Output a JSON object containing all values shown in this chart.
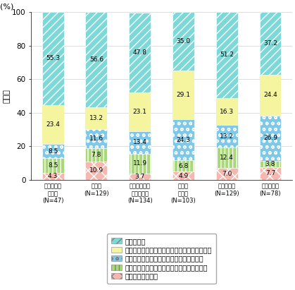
{
  "categories": [
    "農林水産業\n・鉱業\n(N=47)",
    "製造業\n(N=129)",
    "エネルギー・\nインフラ業\n(N=134)",
    "商業・\n流通業\n(N=103)",
    "情報通信業\n(N=129)",
    "サービス業\n(N=78)"
  ],
  "series": [
    {
      "label": "既に実施している",
      "values": [
        4.3,
        10.9,
        3.7,
        4.9,
        7.0,
        7.7
      ],
      "color": "#f5b8b0",
      "hatch": "xx"
    },
    {
      "label": "実施していないが、今後実施する予定である",
      "values": [
        8.5,
        7.8,
        11.9,
        6.8,
        12.4,
        3.8
      ],
      "color": "#a8d878",
      "hatch": "|||"
    },
    {
      "label": "実施予定はないが、今後実施を検討したい",
      "values": [
        8.5,
        11.6,
        13.4,
        24.3,
        13.2,
        26.9
      ],
      "color": "#7ec8e8",
      "hatch": "oo"
    },
    {
      "label": "特に関心はないし、今後の導入も考えていない",
      "values": [
        23.4,
        13.2,
        23.1,
        29.1,
        16.3,
        24.4
      ],
      "color": "#f5f5a0",
      "hatch": ""
    },
    {
      "label": "分からない",
      "values": [
        55.3,
        56.6,
        47.8,
        35.0,
        51.2,
        37.2
      ],
      "color": "#7dd8d8",
      "hatch": "///"
    }
  ],
  "ylim": [
    0,
    100
  ],
  "yticks": [
    0,
    20,
    40,
    60,
    80,
    100
  ],
  "ylabel_text": "割略回",
  "percent_label": "(%)",
  "bar_width": 0.5,
  "figure_bg": "#ffffff",
  "axes_bg": "#ffffff",
  "grid_color": "#d0d0d0",
  "font_size_values": 6.5,
  "font_size_labels": 6.0,
  "font_size_legend": 7.0,
  "font_size_ylabel": 8,
  "font_size_percent": 8,
  "font_size_yticks": 7.5
}
